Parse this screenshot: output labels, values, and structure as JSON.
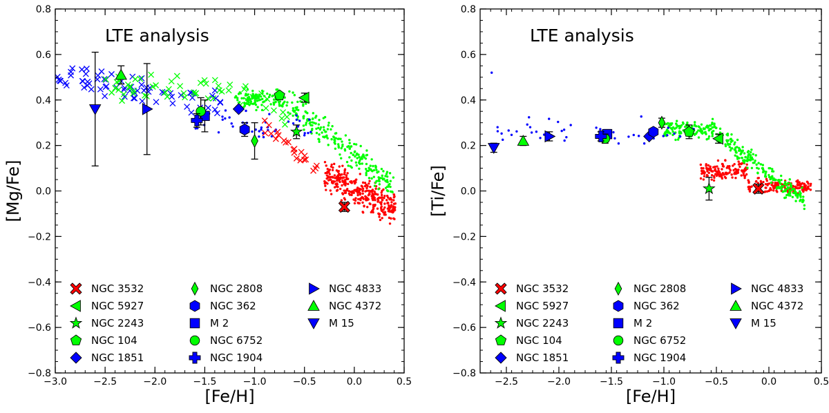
{
  "chart_data": [
    {
      "type": "scatter",
      "title": "LTE analysis",
      "xlabel": "[Fe/H]",
      "ylabel": "[Mg/Fe]",
      "xlim": [
        -3.0,
        0.5
      ],
      "ylim": [
        -0.8,
        0.8
      ],
      "xticks": [
        -3.0,
        -2.5,
        -2.0,
        -1.5,
        -1.0,
        -0.5,
        0.0,
        0.5
      ],
      "xtick_labels": [
        "−3.0",
        "−2.5",
        "−2.0",
        "−1.5",
        "−1.0",
        "−0.5",
        "0.0",
        "0.5"
      ],
      "yticks": [
        -0.8,
        -0.6,
        -0.4,
        -0.2,
        0.0,
        0.2,
        0.4,
        0.6,
        0.8
      ],
      "ytick_labels": [
        "−0.8",
        "−0.6",
        "−0.4",
        "−0.2",
        "0.0",
        "0.2",
        "0.4",
        "0.6",
        "0.8"
      ],
      "clusters": [
        {
          "name": "NGC 3532",
          "x": -0.1,
          "y": -0.07,
          "err": 0.02
        },
        {
          "name": "NGC 5927",
          "x": -0.5,
          "y": 0.41,
          "err": 0.02
        },
        {
          "name": "NGC 2243",
          "x": -0.58,
          "y": 0.26,
          "err": 0.03
        },
        {
          "name": "NGC 104",
          "x": -0.75,
          "y": 0.42,
          "err": 0.01
        },
        {
          "name": "NGC 1851",
          "x": -1.16,
          "y": 0.36,
          "err": 0.01
        },
        {
          "name": "NGC 2808",
          "x": -1.0,
          "y": 0.22,
          "err": 0.08
        },
        {
          "name": "NGC 362",
          "x": -1.1,
          "y": 0.27,
          "err": 0.03
        },
        {
          "name": "M 2",
          "x": -1.5,
          "y": 0.33,
          "err": 0.07
        },
        {
          "name": "NGC 6752",
          "x": -1.54,
          "y": 0.35,
          "err": 0.06
        },
        {
          "name": "NGC 1904",
          "x": -1.58,
          "y": 0.31,
          "err": 0.03
        },
        {
          "name": "NGC 4833",
          "x": -2.08,
          "y": 0.36,
          "err": 0.2
        },
        {
          "name": "NGC 4372",
          "x": -2.34,
          "y": 0.51,
          "err": 0.04
        },
        {
          "name": "M 15",
          "x": -2.6,
          "y": 0.36,
          "err": 0.25
        }
      ],
      "legend_position": "bottom",
      "annotations": [
        "LTE analysis"
      ]
    },
    {
      "type": "scatter",
      "title": "LTE analysis",
      "xlabel": "[Fe/H]",
      "ylabel": "[Ti/Fe]",
      "xlim": [
        -2.75,
        0.5
      ],
      "ylim": [
        -0.8,
        0.8
      ],
      "xticks": [
        -2.5,
        -2.0,
        -1.5,
        -1.0,
        -0.5,
        0.0,
        0.5
      ],
      "xtick_labels": [
        "−2.5",
        "−2.0",
        "−1.5",
        "−1.0",
        "−0.5",
        "0.0",
        "0.5"
      ],
      "yticks": [
        -0.8,
        -0.6,
        -0.4,
        -0.2,
        0.0,
        0.2,
        0.4,
        0.6,
        0.8
      ],
      "ytick_labels": [
        "−0.8",
        "−0.6",
        "−0.4",
        "−0.2",
        "0.0",
        "0.2",
        "0.4",
        "0.6",
        "0.8"
      ],
      "clusters": [
        {
          "name": "NGC 3532",
          "x": -0.1,
          "y": 0.01,
          "err": 0.02
        },
        {
          "name": "NGC 5927",
          "x": -0.48,
          "y": 0.23,
          "err": 0.02
        },
        {
          "name": "NGC 2243",
          "x": -0.57,
          "y": 0.01,
          "err": 0.05
        },
        {
          "name": "NGC 104",
          "x": -0.76,
          "y": 0.26,
          "err": 0.03
        },
        {
          "name": "NGC 1851",
          "x": -1.14,
          "y": 0.24,
          "err": 0.01
        },
        {
          "name": "NGC 2808",
          "x": -1.02,
          "y": 0.3,
          "err": 0.02
        },
        {
          "name": "NGC 362",
          "x": -1.1,
          "y": 0.26,
          "err": 0.01
        },
        {
          "name": "M 2",
          "x": -1.54,
          "y": 0.25,
          "err": 0.02
        },
        {
          "name": "NGC 6752",
          "x": -1.56,
          "y": 0.23,
          "err": 0.02
        },
        {
          "name": "NGC 1904",
          "x": -1.6,
          "y": 0.24,
          "err": 0.02
        },
        {
          "name": "NGC 4833",
          "x": -2.09,
          "y": 0.24,
          "err": 0.02
        },
        {
          "name": "NGC 4372",
          "x": -2.34,
          "y": 0.22,
          "err": 0.02
        },
        {
          "name": "M 15",
          "x": -2.62,
          "y": 0.19,
          "err": 0.02
        }
      ],
      "legend_position": "bottom",
      "annotations": [
        "LTE analysis"
      ]
    }
  ],
  "legend": [
    {
      "name": "NGC 3532",
      "marker": "x-thick",
      "color": "#ff0000"
    },
    {
      "name": "NGC 5927",
      "marker": "triangle-left",
      "color": "#00ff00"
    },
    {
      "name": "NGC 2243",
      "marker": "star",
      "color": "#00ff00"
    },
    {
      "name": "NGC 104",
      "marker": "pentagon",
      "color": "#00ff00"
    },
    {
      "name": "NGC 1851",
      "marker": "diamond",
      "color": "#0000ff"
    },
    {
      "name": "NGC 2808",
      "marker": "thin-diamond",
      "color": "#00ff00"
    },
    {
      "name": "NGC 362",
      "marker": "hexagon",
      "color": "#0000ff"
    },
    {
      "name": "M 2",
      "marker": "square",
      "color": "#0000ff"
    },
    {
      "name": "NGC 6752",
      "marker": "circle",
      "color": "#00ff00"
    },
    {
      "name": "NGC 1904",
      "marker": "plus-thick",
      "color": "#0000ff"
    },
    {
      "name": "NGC 4833",
      "marker": "triangle-right",
      "color": "#0000ff"
    },
    {
      "name": "NGC 4372",
      "marker": "triangle-up",
      "color": "#00ff00"
    },
    {
      "name": "M 15",
      "marker": "triangle-down",
      "color": "#0000ff"
    }
  ],
  "colors": {
    "red": "#ff0000",
    "green": "#00ff00",
    "blue": "#0000ff",
    "frame": "#000000"
  }
}
